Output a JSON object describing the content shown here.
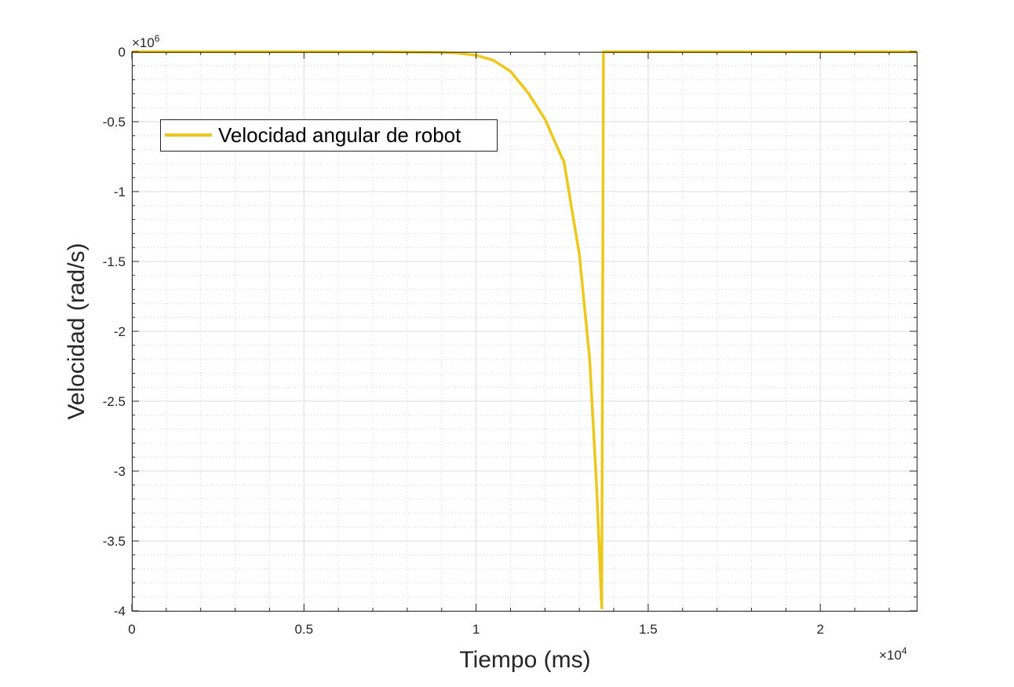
{
  "chart_data": {
    "type": "line",
    "xlabel": "Tiempo (ms)",
    "ylabel": "Velocidad (rad/s)",
    "xlim": [
      0,
      22800
    ],
    "ylim": [
      -4000000,
      0
    ],
    "x_ticks": [
      {
        "value": 0,
        "label": "0"
      },
      {
        "value": 5000,
        "label": "0.5"
      },
      {
        "value": 10000,
        "label": "1"
      },
      {
        "value": 15000,
        "label": "1.5"
      },
      {
        "value": 20000,
        "label": "2"
      }
    ],
    "y_ticks": [
      {
        "value": 0,
        "label": "0"
      },
      {
        "value": -500000,
        "label": "-0.5"
      },
      {
        "value": -1000000,
        "label": "-1"
      },
      {
        "value": -1500000,
        "label": "-1.5"
      },
      {
        "value": -2000000,
        "label": "-2"
      },
      {
        "value": -2500000,
        "label": "-2.5"
      },
      {
        "value": -3000000,
        "label": "-3"
      },
      {
        "value": -3500000,
        "label": "-3.5"
      },
      {
        "value": -4000000,
        "label": "-4"
      }
    ],
    "x_exponent": {
      "base": "×10",
      "power": "4"
    },
    "y_exponent": {
      "base": "×10",
      "power": "6"
    },
    "grid": true,
    "minor_grid": true,
    "legend_position": "top-left",
    "series": [
      {
        "name": "Velocidad angular de robot",
        "color": "#EDC71A",
        "x": [
          0,
          7000,
          8000,
          9000,
          9500,
          10000,
          10500,
          11000,
          11500,
          12000,
          12500,
          12550,
          13000,
          13300,
          13500,
          13650,
          13700,
          15000,
          20000,
          22800
        ],
        "y": [
          0,
          0,
          -2000,
          -5000,
          -10000,
          -25000,
          -60000,
          -140000,
          -290000,
          -480000,
          -760000,
          -780000,
          -1450000,
          -2200000,
          -3100000,
          -3980000,
          0,
          0,
          0,
          0
        ]
      }
    ]
  }
}
